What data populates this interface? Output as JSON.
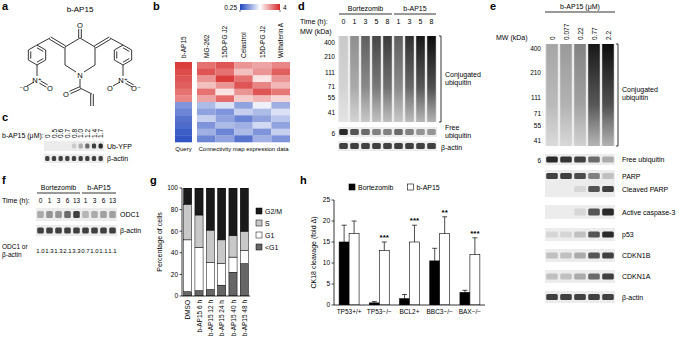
{
  "panels": {
    "labels": [
      "a",
      "b",
      "c",
      "d",
      "e",
      "f",
      "g",
      "h"
    ],
    "a": {
      "title": "b-AP15",
      "atoms": [
        "O",
        "N",
        "O",
        "N⁺",
        "⁻O",
        "O",
        "N⁺",
        "O",
        "O⁻"
      ]
    },
    "c": {
      "header": "b-AP15 (μM):",
      "lanes": [
        "0",
        "0.5",
        "0.6",
        "0.7",
        "0.8",
        "1.0",
        "1.2",
        "1.4",
        "1.7"
      ],
      "rows": [
        "Ub-YFP",
        "β-actin"
      ]
    },
    "d": {
      "groups": [
        "Bortezomib",
        "b-AP15"
      ],
      "time_label": "Time (h):",
      "lanes": [
        "0",
        "1",
        "3",
        "5",
        "8",
        "1",
        "3",
        "5",
        "8"
      ],
      "mw_label": "MW (kDa)",
      "mw": [
        "400",
        "210",
        "111",
        "71",
        "55",
        "41",
        "6"
      ],
      "rows": [
        "Conjugated ubiquitin",
        "Free ubiquitin",
        "β-actin"
      ]
    },
    "e": {
      "header": "b-AP15 (μM)",
      "lanes": [
        "0",
        "0.077",
        "0.22",
        "0.77",
        "2.2"
      ],
      "mw_label": "MW (kDa)",
      "mw": [
        "400",
        "210",
        "111",
        "71",
        "55",
        "41",
        "6"
      ],
      "rows": [
        "Conjugated ubiquitin",
        "Free ubiquitin",
        "PARP",
        "Cleaved PARP",
        "Active caspase-3",
        "p53",
        "CDKN1B",
        "CDKN1A",
        "β-actin"
      ]
    },
    "f": {
      "groups": [
        "Bortezomib",
        "b-AP15"
      ],
      "time_label": "Time (h):",
      "lanes": [
        "0",
        "1",
        "3",
        "6",
        "13",
        "1",
        "3",
        "6",
        "13"
      ],
      "rows": [
        "ODC1",
        "β-actin"
      ],
      "ratio_label": "ODC1 or β-actin",
      "ratios": [
        "1.0",
        "1.3",
        "1.3",
        "2.1",
        "3.3",
        "0.7",
        "1.0",
        "1.1",
        "1.1"
      ]
    }
  },
  "chart_data": [
    {
      "type": "heatmap",
      "categories": [
        "b-AP15",
        "MG-262",
        "15D-PG J2",
        "Celastrol",
        "15D-PG J2",
        "Withaferin A"
      ],
      "x_groups": [
        "Query",
        "Connectivity map expression data"
      ],
      "cells": [
        [
          3.5,
          2.5,
          3,
          2,
          1.8,
          2.2
        ],
        [
          3.2,
          3,
          2.5,
          1.5,
          2,
          2.8
        ],
        [
          3,
          2,
          3.5,
          2.5,
          1.2,
          2
        ],
        [
          2.8,
          1.5,
          2,
          3,
          2.2,
          1.6
        ],
        [
          2.5,
          2.5,
          1.2,
          2,
          3,
          2.4
        ],
        [
          2.2,
          1.8,
          2.6,
          1.4,
          1.6,
          1.3
        ],
        [
          0.45,
          0.6,
          0.8,
          0.5,
          0.9,
          0.55
        ],
        [
          0.4,
          0.5,
          0.45,
          0.7,
          0.6,
          0.8
        ],
        [
          0.35,
          0.7,
          0.5,
          0.4,
          0.5,
          0.65
        ],
        [
          0.33,
          0.45,
          0.6,
          0.55,
          0.75,
          0.5
        ],
        [
          0.3,
          0.55,
          0.4,
          0.6,
          0.45,
          0.7
        ],
        [
          0.28,
          0.4,
          0.5,
          0.35,
          0.55,
          0.45
        ]
      ],
      "color_range": [
        0.25,
        4
      ],
      "color_ticks": [
        0.25,
        4
      ]
    },
    {
      "type": "bar",
      "stacked": true,
      "grid": false,
      "legend": "right",
      "ylabel": "Percentage of cells",
      "categories": [
        "DMSO",
        "b-AP15 6 h",
        "b-AP15 12 h",
        "b-AP15 24 h",
        "b-AP15 40 h",
        "b-AP15 48 h"
      ],
      "ylim": [
        0,
        100
      ],
      "yticks": [
        0,
        20,
        40,
        60,
        80,
        100
      ],
      "series": [
        {
          "name": "<G1",
          "color": "#666666",
          "values": [
            4,
            5,
            6,
            10,
            22,
            30
          ]
        },
        {
          "name": "G1",
          "color": "#ffffff",
          "values": [
            48,
            40,
            25,
            20,
            14,
            12
          ]
        },
        {
          "name": "S",
          "color": "#c8c8c8",
          "values": [
            33,
            30,
            30,
            22,
            20,
            18
          ]
        },
        {
          "name": "G2/M",
          "color": "#1a1a1a",
          "values": [
            15,
            25,
            39,
            48,
            44,
            40
          ]
        }
      ]
    },
    {
      "type": "bar",
      "grid": false,
      "legend": "top",
      "ylabel": "CK18 cleavage (fold Δ)",
      "categories": [
        "TP53+/+",
        "TP53−/−",
        "BCL2+",
        "BBC3−/−",
        "BAX−/−"
      ],
      "ylim": [
        0,
        25
      ],
      "yticks": [
        0,
        5,
        10,
        15,
        20,
        25
      ],
      "series": [
        {
          "name": "Bortezomib",
          "color": "#000000",
          "values": [
            15,
            0.5,
            1.5,
            10.5,
            3
          ],
          "errors": [
            4,
            0.3,
            1,
            3,
            0.5
          ]
        },
        {
          "name": "b-AP15",
          "color": "#ffffff",
          "values": [
            17,
            13,
            15,
            17,
            12
          ],
          "errors": [
            3,
            2,
            4,
            4,
            4
          ]
        }
      ],
      "annotations": [
        {
          "category": "TP53−/−",
          "text": "***"
        },
        {
          "category": "BCL2+",
          "text": "***"
        },
        {
          "category": "BBC3−/−",
          "text": "**"
        },
        {
          "category": "BAX−/−",
          "text": "***"
        }
      ]
    }
  ]
}
